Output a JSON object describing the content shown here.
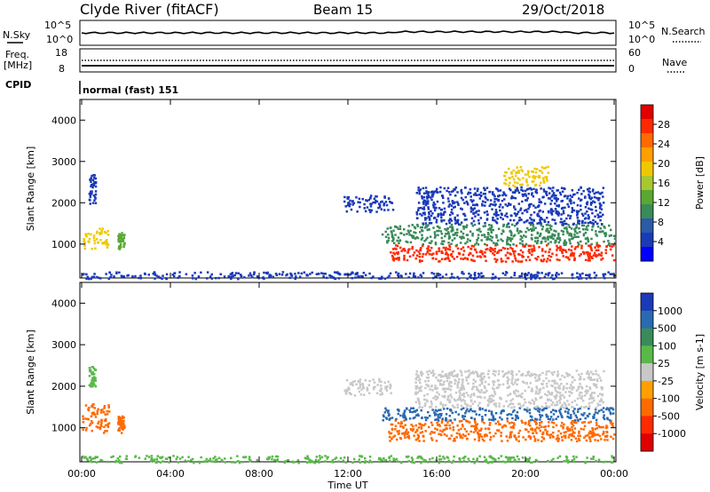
{
  "header": {
    "site": "Clyde River (fitACF)",
    "beam": "Beam 15",
    "date": "29/Oct/2018"
  },
  "panels": {
    "nsky": {
      "left_label": "N.Sky",
      "right_label": "N.Search",
      "ticks": [
        "10^5",
        "10^0"
      ]
    },
    "freq": {
      "left_label_1": "Freq.",
      "left_label_2": "[MHz]",
      "left_ticks": [
        "18",
        "8"
      ],
      "right_label": "Nave",
      "right_ticks": [
        "60",
        "0"
      ]
    },
    "cpid": {
      "label": "CPID",
      "value": "normal (fast) 151"
    }
  },
  "chart_data": [
    {
      "type": "heatmap",
      "title": "",
      "xlabel": "",
      "ylabel": "Slant Range [km]",
      "xlim": [
        "00:00",
        "24:00"
      ],
      "ylim": [
        180,
        4500
      ],
      "x_ticks": [
        "00:00",
        "04:00",
        "08:00",
        "12:00",
        "16:00",
        "20:00",
        "00:00"
      ],
      "y_ticks": [
        1000,
        2000,
        3000,
        4000
      ],
      "colorbar": {
        "label": "Power [dB]",
        "ticks": [
          "28",
          "24",
          "20",
          "16",
          "12",
          "8",
          "4"
        ],
        "colors": [
          "#e00000",
          "#ff2a00",
          "#ff6a00",
          "#ffa000",
          "#f0c800",
          "#a8c830",
          "#5aa832",
          "#3a8a5a",
          "#2a5aa8",
          "#1a3ab8",
          "#0000ff"
        ]
      },
      "regions": [
        {
          "t": [
            0.0,
            1.2
          ],
          "r": [
            900,
            1400
          ],
          "value": 18
        },
        {
          "t": [
            1.6,
            1.9
          ],
          "r": [
            900,
            1300
          ],
          "value": 12
        },
        {
          "t": [
            0.3,
            0.6
          ],
          "r": [
            2000,
            2700
          ],
          "value": 6
        },
        {
          "t": [
            11.8,
            14.0
          ],
          "r": [
            1800,
            2200
          ],
          "value": 5
        },
        {
          "t": [
            13.8,
            24.0
          ],
          "r": [
            600,
            1000
          ],
          "value": 26
        },
        {
          "t": [
            13.5,
            24.0
          ],
          "r": [
            1000,
            1500
          ],
          "value": 10
        },
        {
          "t": [
            15.0,
            23.5
          ],
          "r": [
            1500,
            2400
          ],
          "value": 6
        },
        {
          "t": [
            19.0,
            21.0
          ],
          "r": [
            2400,
            2900
          ],
          "value": 18
        },
        {
          "t": [
            0.0,
            24.0
          ],
          "r": [
            180,
            350
          ],
          "value": 6
        }
      ]
    },
    {
      "type": "heatmap",
      "title": "",
      "xlabel": "Time UT",
      "ylabel": "Slant Range [km]",
      "xlim": [
        "00:00",
        "24:00"
      ],
      "ylim": [
        180,
        4500
      ],
      "x_ticks": [
        "00:00",
        "04:00",
        "08:00",
        "12:00",
        "16:00",
        "20:00",
        "00:00"
      ],
      "y_ticks": [
        1000,
        2000,
        3000,
        4000
      ],
      "colorbar": {
        "label": "Velocity [m s-1]",
        "ticks": [
          "1000",
          "500",
          "100",
          "25",
          "-25",
          "-100",
          "-500",
          "-1000"
        ],
        "colors": [
          "#1a3ab8",
          "#2a6ab0",
          "#3a8a5a",
          "#5ab84a",
          "#c8c8c8",
          "#ffa000",
          "#ff6a00",
          "#ff2a00",
          "#e00000"
        ]
      },
      "regions": [
        {
          "t": [
            0.0,
            1.2
          ],
          "r": [
            900,
            1600
          ],
          "value": -100
        },
        {
          "t": [
            1.6,
            1.9
          ],
          "r": [
            900,
            1300
          ],
          "value": -100
        },
        {
          "t": [
            0.3,
            0.6
          ],
          "r": [
            2000,
            2500
          ],
          "value": 25
        },
        {
          "t": [
            11.8,
            14.0
          ],
          "r": [
            1800,
            2200
          ],
          "value": 0
        },
        {
          "t": [
            13.8,
            24.0
          ],
          "r": [
            700,
            1200
          ],
          "value": -100
        },
        {
          "t": [
            13.5,
            24.0
          ],
          "r": [
            1200,
            1500
          ],
          "value": 300
        },
        {
          "t": [
            15.0,
            23.5
          ],
          "r": [
            1500,
            2400
          ],
          "value": 0
        },
        {
          "t": [
            0.0,
            24.0
          ],
          "r": [
            180,
            350
          ],
          "value": 50
        }
      ]
    }
  ]
}
